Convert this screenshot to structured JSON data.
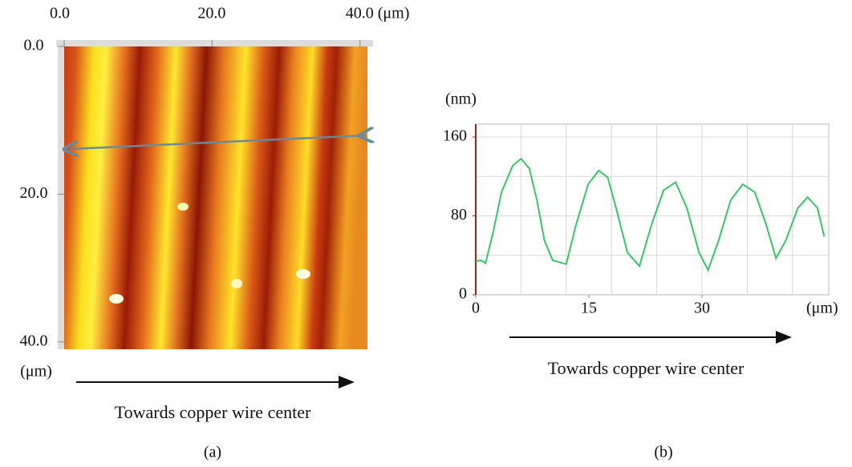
{
  "chart_data": [
    {
      "type": "image",
      "xlim": [
        0,
        41
      ],
      "ylim": [
        0,
        41
      ],
      "xticks": [
        {
          "value": 0,
          "label": "0.0"
        },
        {
          "value": 20,
          "label": "20.0"
        },
        {
          "value": 40,
          "label": "40.0 (μm)"
        }
      ],
      "yticks": [
        {
          "value": 0,
          "label": "0.0"
        },
        {
          "value": 20,
          "label": "20.0"
        },
        {
          "value": 40,
          "label": "40.0"
        }
      ],
      "ylabel": "(μm)",
      "annotation": "Towards copper wire center",
      "caption": "(a)"
    },
    {
      "type": "line",
      "xlim": [
        0,
        46.8
      ],
      "ylim": [
        0,
        173
      ],
      "xticks": [
        0,
        15,
        30
      ],
      "yticks": [
        0,
        80,
        160
      ],
      "xgrid": [
        6,
        12,
        18,
        24,
        30,
        36,
        42
      ],
      "ygrid": [
        40,
        80,
        120,
        160
      ],
      "xlabel": "(μm)",
      "ylabel": "(nm)",
      "color": "#3cc36b",
      "x": [
        0,
        0.7,
        1.3,
        2.3,
        3.4,
        4.9,
        6,
        7.1,
        8.1,
        9.1,
        10.2,
        12,
        13.3,
        14.9,
        16.3,
        17.5,
        18.6,
        20.1,
        21.7,
        23.3,
        24.9,
        26.5,
        28,
        29.6,
        30.8,
        32.2,
        33.8,
        35.4,
        37,
        38.5,
        39.8,
        41.1,
        42.7,
        44,
        45.3,
        46.2
      ],
      "values": [
        34,
        35,
        32,
        63,
        104,
        131,
        138,
        128,
        96,
        55,
        35,
        31,
        71,
        112,
        126,
        119,
        88,
        43,
        29,
        71,
        106,
        114,
        88,
        43,
        25,
        55,
        96,
        112,
        104,
        71,
        37,
        55,
        88,
        99,
        88,
        59
      ],
      "annotation": "Towards copper wire center",
      "caption": "(b)"
    }
  ]
}
